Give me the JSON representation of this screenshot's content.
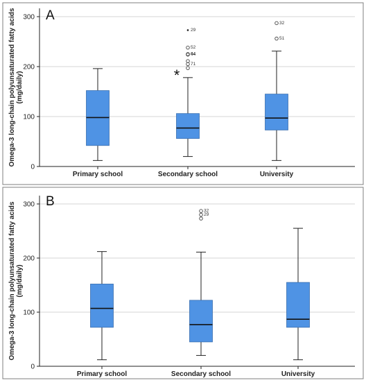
{
  "chart_data": [
    {
      "panel_label": "A",
      "type": "boxplot",
      "ylabel": "Omega-3 long-chain polyunsaturated fatty acids (mg/daily)",
      "ylim": [
        0,
        300
      ],
      "yticks": [
        0,
        100,
        200,
        300
      ],
      "grid": "horizontal",
      "box_color": "#4f93e4",
      "categories": [
        "Primary school",
        "Secondary school",
        "University"
      ],
      "boxes": [
        {
          "category": "Primary school",
          "whisker_low": 12,
          "q1": 42,
          "median": 98,
          "q3": 152,
          "whisker_high": 196,
          "outliers": []
        },
        {
          "category": "Secondary school",
          "whisker_low": 20,
          "q1": 56,
          "median": 77,
          "q3": 106,
          "whisker_high": 178,
          "outliers": [
            {
              "value": 273,
              "label": "29",
              "marker": "dot"
            },
            {
              "value": 238,
              "label": "52",
              "marker": "circle"
            },
            {
              "value": 225,
              "label": "64",
              "marker": "circle"
            },
            {
              "value": 224,
              "label": "44",
              "marker": "circle"
            },
            {
              "value": 211,
              "label": "",
              "marker": "circle"
            },
            {
              "value": 205,
              "label": "71",
              "marker": "circle"
            },
            {
              "value": 197,
              "label": "",
              "marker": "circle"
            },
            {
              "value": 185,
              "label": "",
              "marker": "star"
            }
          ]
        },
        {
          "category": "University",
          "whisker_low": 12,
          "q1": 73,
          "median": 97,
          "q3": 145,
          "whisker_high": 231,
          "outliers": [
            {
              "value": 287,
              "label": "32",
              "marker": "circle"
            },
            {
              "value": 256,
              "label": "51",
              "marker": "circle"
            }
          ]
        }
      ]
    },
    {
      "panel_label": "B",
      "type": "boxplot",
      "ylabel": "Omega-3 long-chain polyunsaturated fatty acids (mg/daily)",
      "ylim": [
        0,
        300
      ],
      "yticks": [
        0,
        100,
        200,
        300
      ],
      "grid": "horizontal",
      "box_color": "#4f93e4",
      "categories": [
        "Primary school",
        "Secondary school",
        "University"
      ],
      "boxes": [
        {
          "category": "Primary school",
          "whisker_low": 12,
          "q1": 72,
          "median": 107,
          "q3": 152,
          "whisker_high": 212,
          "outliers": []
        },
        {
          "category": "Secondary school",
          "whisker_low": 20,
          "q1": 45,
          "median": 77,
          "q3": 122,
          "whisker_high": 211,
          "outliers": [
            {
              "value": 287,
              "label": "32",
              "marker": "circle"
            },
            {
              "value": 280,
              "label": "29",
              "marker": "circle"
            },
            {
              "value": 273,
              "label": "",
              "marker": "circle"
            }
          ]
        },
        {
          "category": "University",
          "whisker_low": 12,
          "q1": 72,
          "median": 87,
          "q3": 155,
          "whisker_high": 255,
          "outliers": []
        }
      ]
    }
  ]
}
